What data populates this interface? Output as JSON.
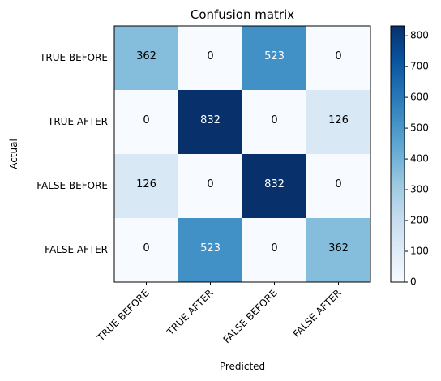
{
  "chart_data": {
    "type": "heatmap",
    "title": "Confusion matrix",
    "xlabel": "Predicted",
    "ylabel": "Actual",
    "x_categories": [
      "TRUE BEFORE",
      "TRUE AFTER",
      "FALSE BEFORE",
      "FALSE AFTER"
    ],
    "y_categories": [
      "TRUE BEFORE",
      "TRUE AFTER",
      "FALSE BEFORE",
      "FALSE AFTER"
    ],
    "values": [
      [
        362,
        0,
        523,
        0
      ],
      [
        0,
        832,
        0,
        126
      ],
      [
        126,
        0,
        832,
        0
      ],
      [
        0,
        523,
        0,
        362
      ]
    ],
    "colormap": "Blues",
    "colorbar": {
      "range": [
        0,
        832
      ],
      "ticks": [
        0,
        100,
        200,
        300,
        400,
        500,
        600,
        700,
        800
      ]
    }
  }
}
